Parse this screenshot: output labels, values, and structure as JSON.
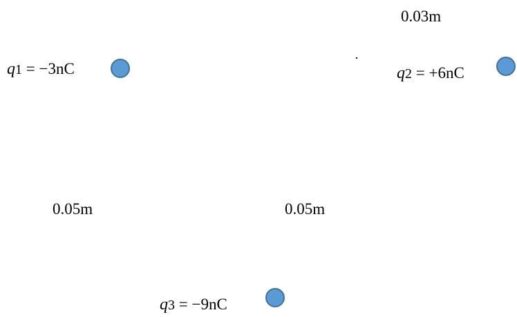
{
  "charges": [
    {
      "symbol": "q",
      "subscript": "1",
      "value": "= −3nC",
      "color": "#5b9bd5"
    },
    {
      "symbol": "q",
      "subscript": "2",
      "value": "= +6nC",
      "color": "#5b9bd5"
    },
    {
      "symbol": "q",
      "subscript": "3",
      "value": "= −9nC",
      "color": "#5b9bd5"
    }
  ],
  "distances": {
    "q1_q2": "0.03m",
    "q1_q3": "0.05m",
    "q2_q3": "0.05m"
  }
}
